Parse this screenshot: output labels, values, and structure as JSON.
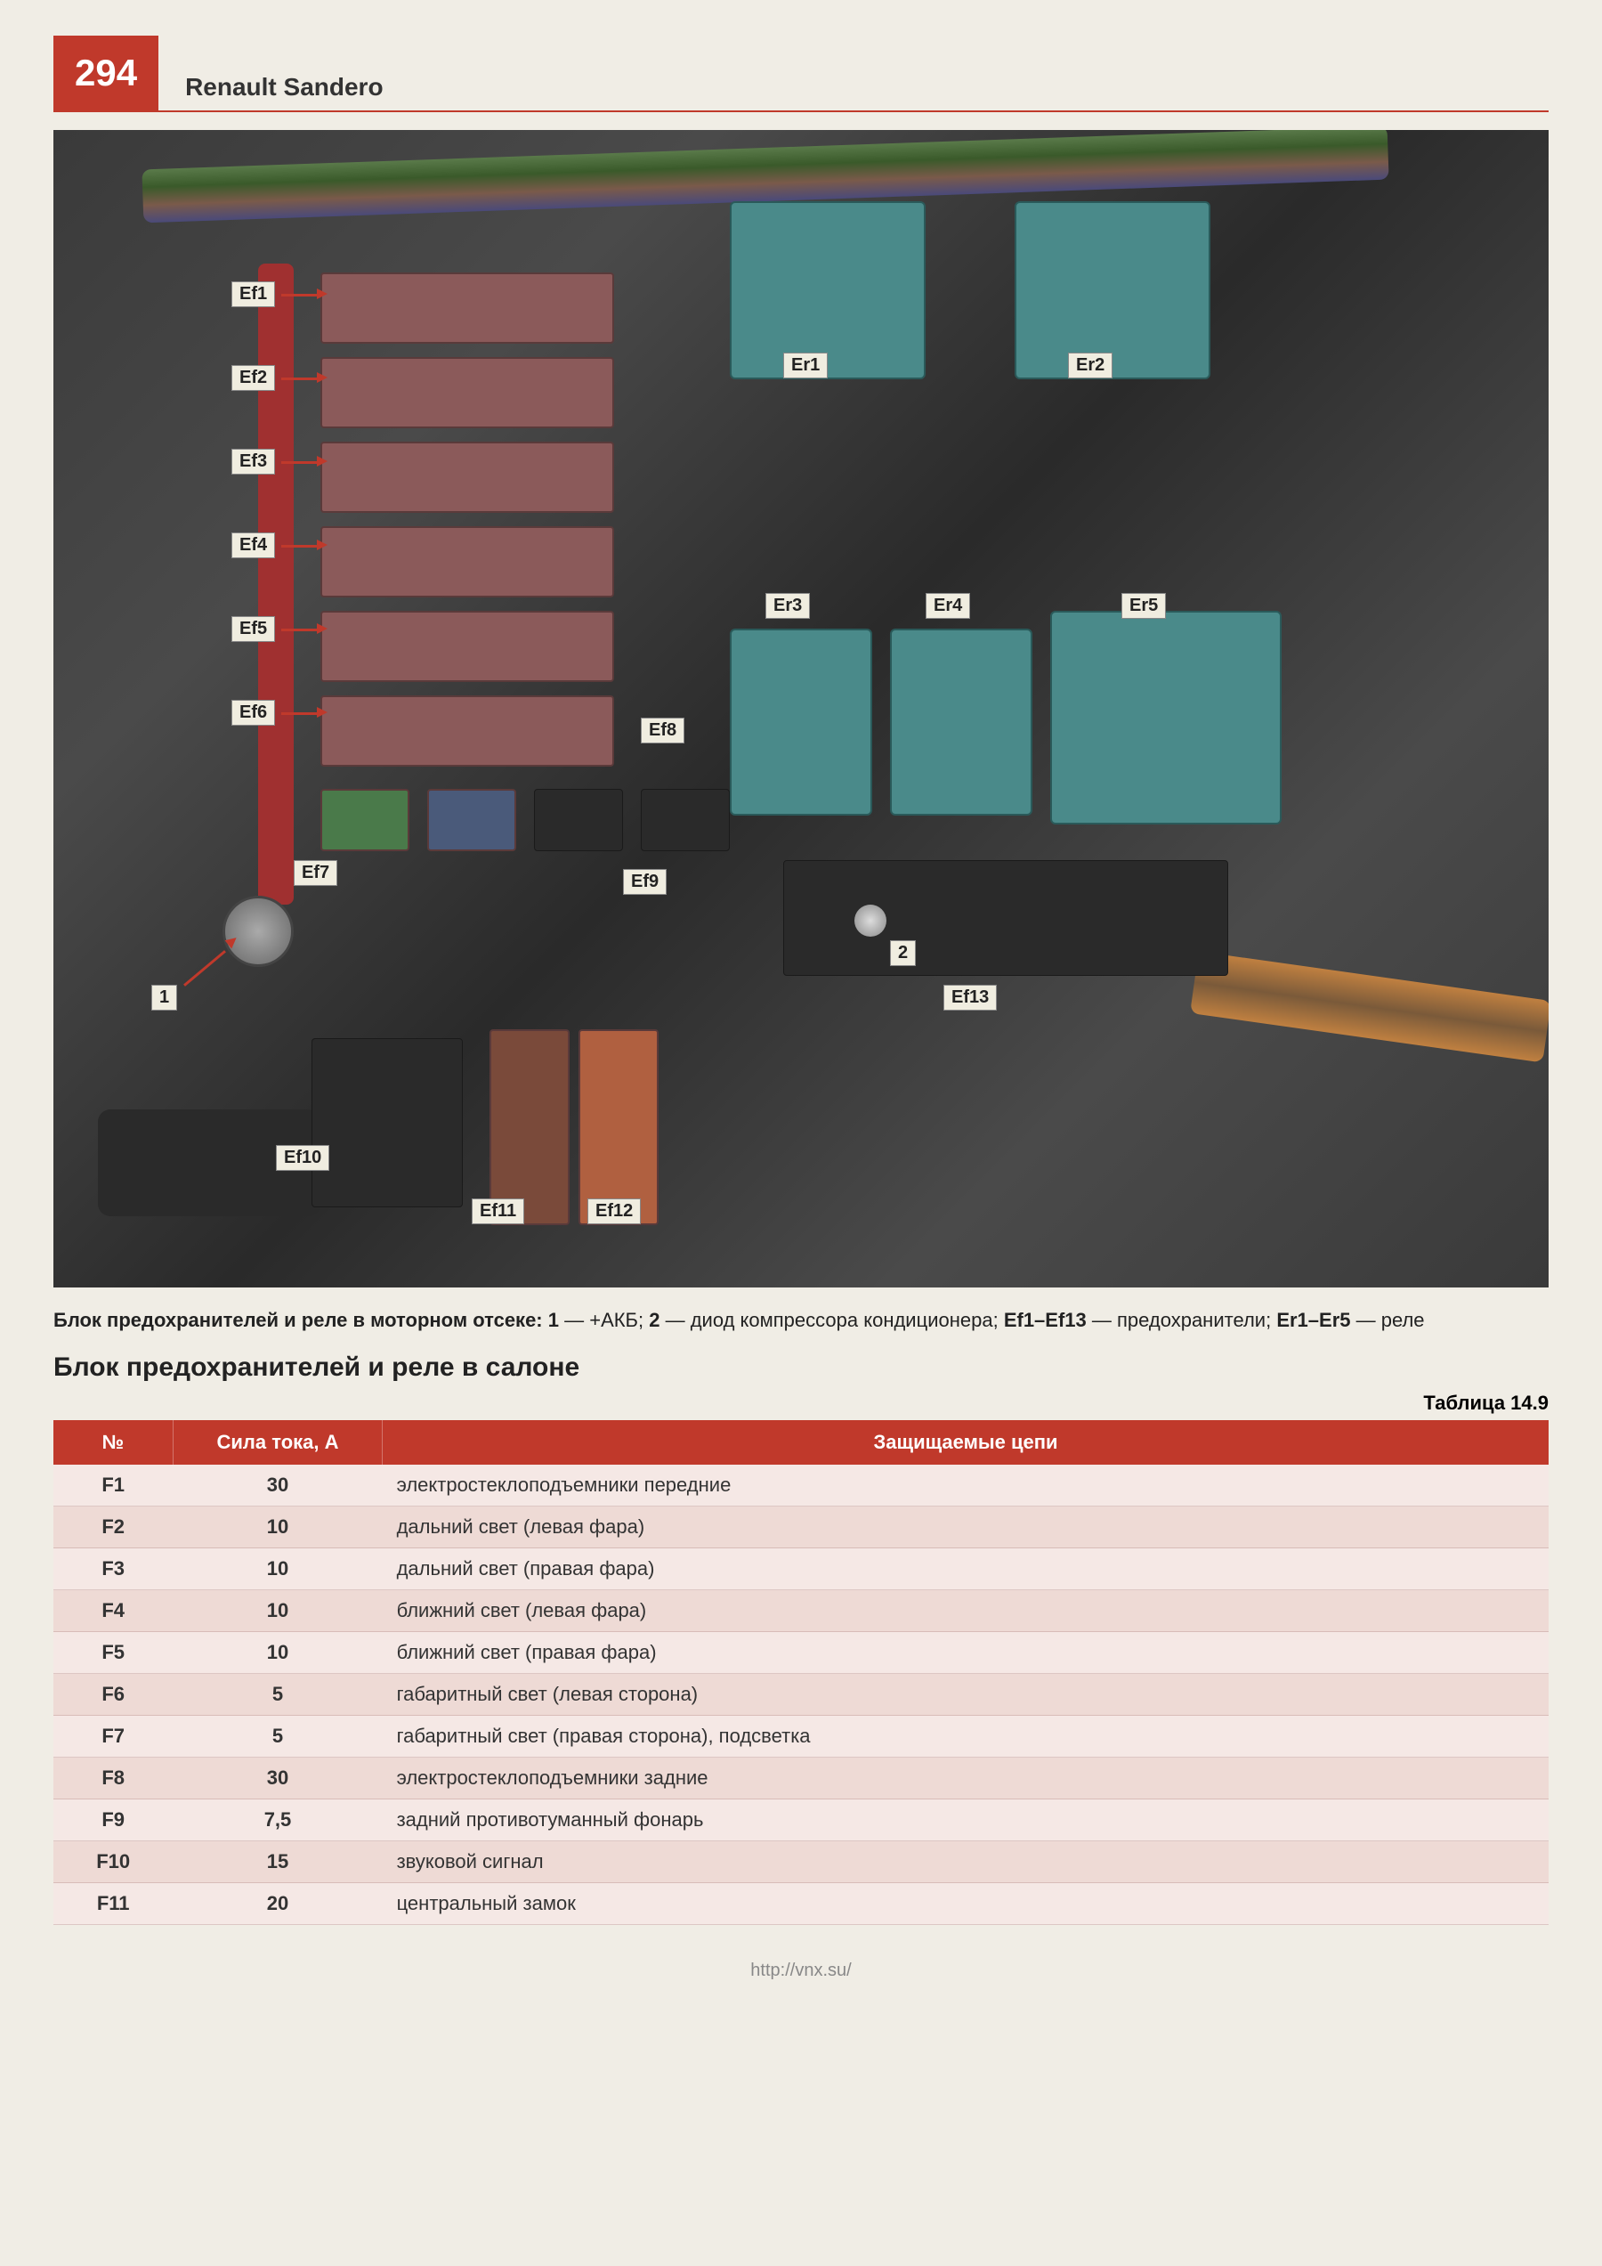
{
  "header": {
    "page_number": "294",
    "book_title": "Renault Sandero"
  },
  "photo": {
    "fuse_labels": [
      "Ef1",
      "Ef2",
      "Ef3",
      "Ef4",
      "Ef5",
      "Ef6",
      "Ef7",
      "Ef8",
      "Ef9",
      "Ef10",
      "Ef11",
      "Ef12",
      "Ef13"
    ],
    "relay_labels": [
      "Er1",
      "Er2",
      "Er3",
      "Er4",
      "Er5"
    ],
    "num_labels": [
      "1",
      "2"
    ]
  },
  "caption": {
    "prefix": "Блок предохранителей и реле в моторном отсеке: ",
    "part1_bold": "1",
    "part1_text": " — +АКБ; ",
    "part2_bold": "2",
    "part2_text": " — диод компрессора кондиционера; ",
    "part3_bold": "Ef1–Ef13",
    "part3_text": " — предохранители; ",
    "part4_bold": "Er1–Er5",
    "part4_text": " — реле"
  },
  "section_title": "Блок предохранителей и реле в салоне",
  "table_number": "Таблица 14.9",
  "table": {
    "columns": [
      "№",
      "Сила тока, А",
      "Защищаемые цепи"
    ],
    "rows": [
      [
        "F1",
        "30",
        "электростеклоподъемники передние"
      ],
      [
        "F2",
        "10",
        "дальний свет (левая фара)"
      ],
      [
        "F3",
        "10",
        "дальний свет (правая фара)"
      ],
      [
        "F4",
        "10",
        "ближний свет (левая фара)"
      ],
      [
        "F5",
        "10",
        "ближний свет (правая фара)"
      ],
      [
        "F6",
        "5",
        "габаритный свет (левая сторона)"
      ],
      [
        "F7",
        "5",
        "габаритный свет (правая сторона), подсветка"
      ],
      [
        "F8",
        "30",
        "электростеклоподъемники задние"
      ],
      [
        "F9",
        "7,5",
        "задний противотуманный фонарь"
      ],
      [
        "F10",
        "15",
        "звуковой сигнал"
      ],
      [
        "F11",
        "20",
        "центральный замок"
      ]
    ]
  },
  "footer_url": "http://vnx.su/",
  "colors": {
    "accent": "#c0392b",
    "bg": "#f0ede5",
    "row_odd": "#f5e8e5",
    "row_even": "#eedad5"
  }
}
